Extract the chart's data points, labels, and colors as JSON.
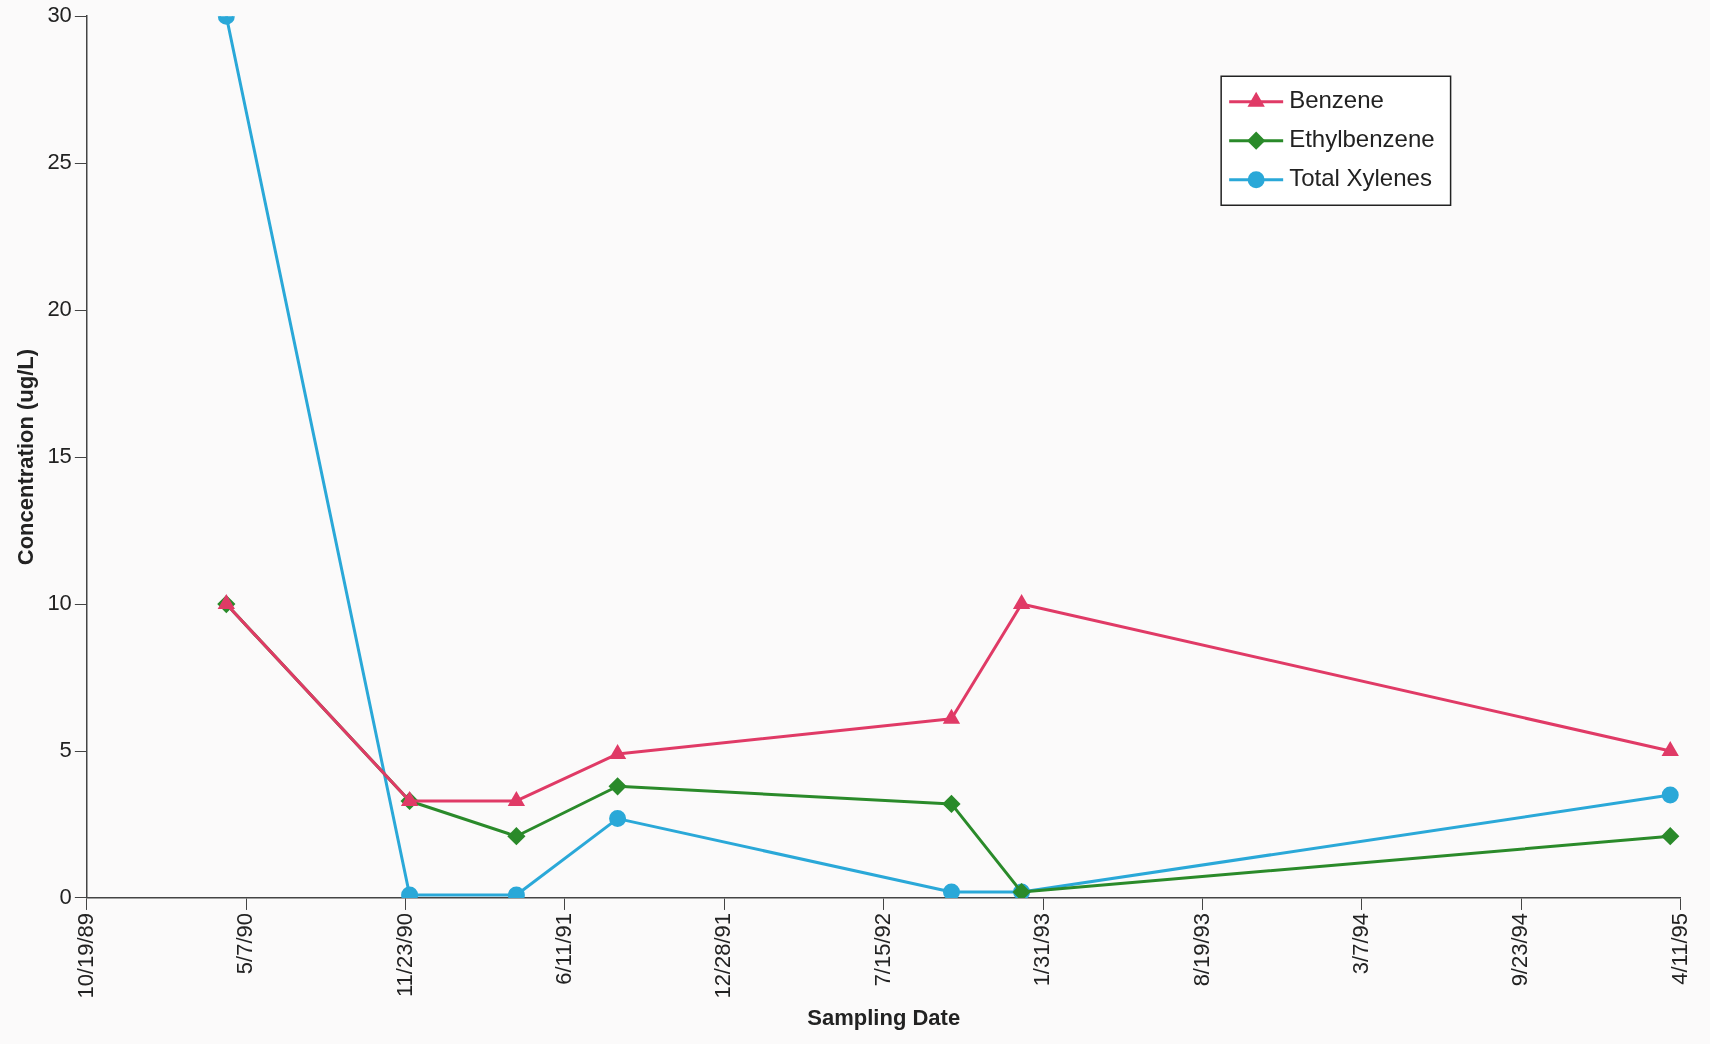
{
  "chart_data": {
    "type": "line",
    "xlabel": "Sampling Date",
    "ylabel": "Concentration (ug/L)",
    "x": [
      "1990-04-12",
      "1990-11-28",
      "1991-04-11",
      "1991-08-16",
      "1992-10-08",
      "1993-01-04",
      "1995-03-29"
    ],
    "series": [
      {
        "name": "Benzene",
        "color": "#e03a66",
        "marker": "triangle",
        "values": [
          10,
          3.3,
          3.3,
          4.9,
          6.1,
          10,
          5.0
        ]
      },
      {
        "name": "Ethylbenzene",
        "color": "#2a8a2a",
        "marker": "diamond",
        "values": [
          10,
          3.3,
          2.1,
          3.8,
          3.2,
          0.2,
          2.1
        ]
      },
      {
        "name": "Total Xylenes",
        "color": "#2aa8d8",
        "marker": "circle",
        "values": [
          30,
          0.1,
          0.1,
          2.7,
          0.2,
          0.2,
          3.5
        ]
      }
    ],
    "xlim": [
      "1989-10-19",
      "1995-04-11"
    ],
    "xticks": [
      {
        "value": "1989-10-19",
        "label": "10/19/89"
      },
      {
        "value": "1990-05-07",
        "label": "5/7/90"
      },
      {
        "value": "1990-11-23",
        "label": "11/23/90"
      },
      {
        "value": "1991-06-11",
        "label": "6/11/91"
      },
      {
        "value": "1991-12-28",
        "label": "12/28/91"
      },
      {
        "value": "1992-07-15",
        "label": "7/15/92"
      },
      {
        "value": "1993-01-31",
        "label": "1/31/93"
      },
      {
        "value": "1993-08-19",
        "label": "8/19/93"
      },
      {
        "value": "1994-03-07",
        "label": "3/7/94"
      },
      {
        "value": "1994-09-23",
        "label": "9/23/94"
      },
      {
        "value": "1995-04-11",
        "label": "4/11/95"
      }
    ],
    "ylim": [
      0,
      30
    ],
    "yticks": [
      0,
      5,
      10,
      15,
      20,
      25,
      30
    ],
    "grid": false,
    "legend": "top right",
    "line_style": "solid"
  }
}
